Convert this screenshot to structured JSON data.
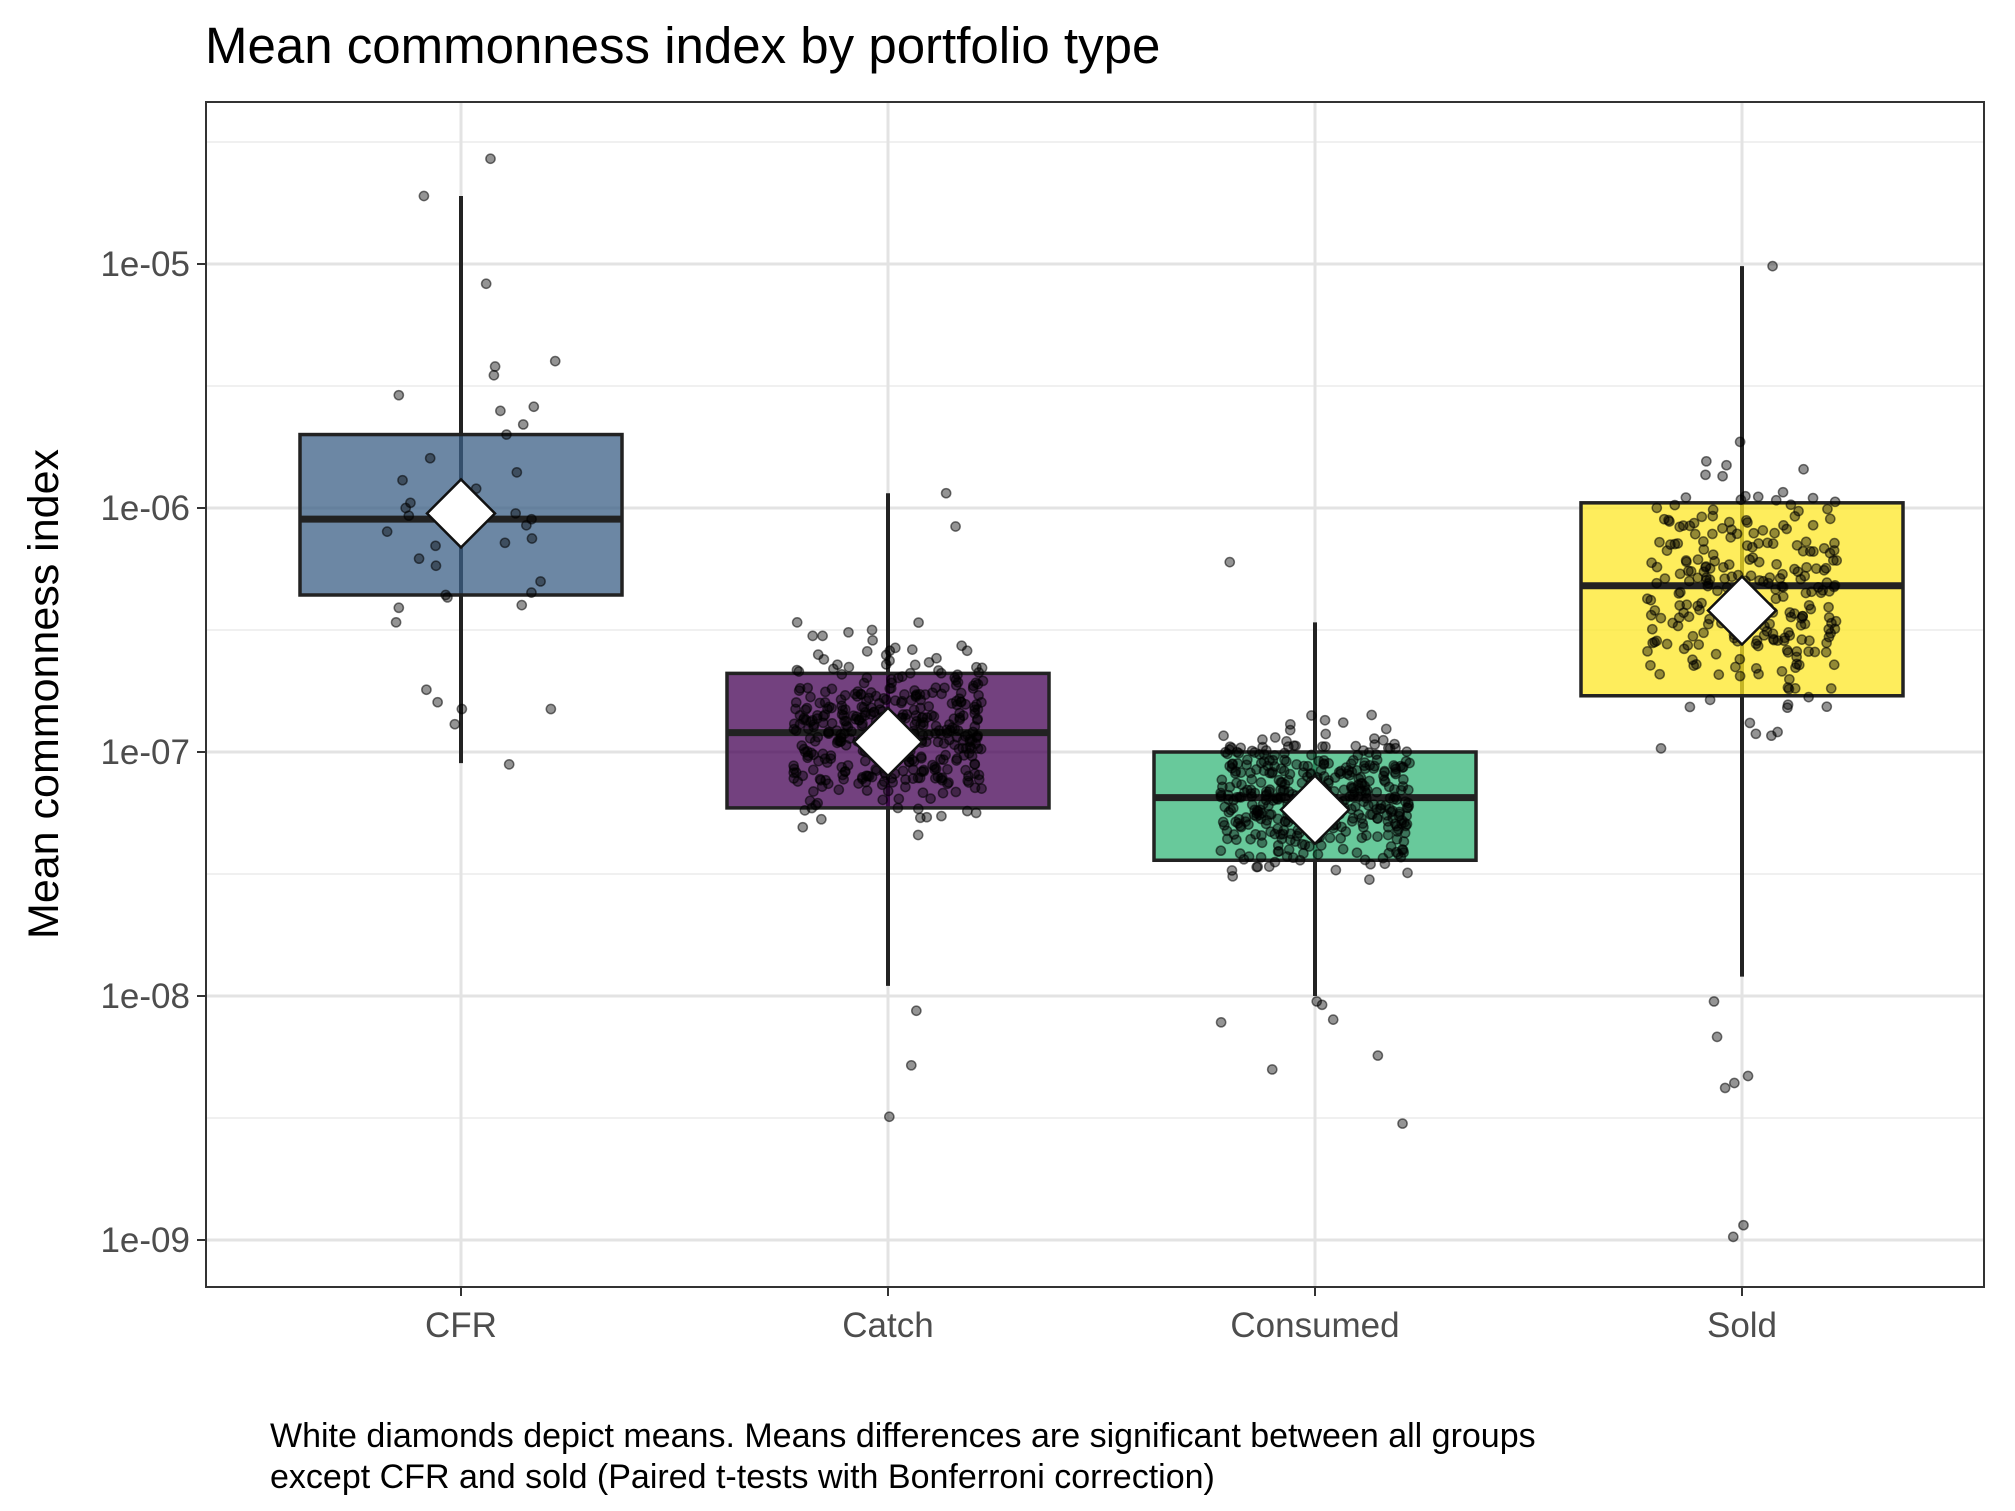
{
  "chart_data": {
    "type": "boxplot",
    "title": "Mean commonness index by portfolio type",
    "xlabel": "",
    "ylabel": "Mean commonness index",
    "y_scale": "log10",
    "ylim": [
      6e-10,
      4.2e-05
    ],
    "y_ticks": [
      1e-09,
      1e-08,
      1e-07,
      1e-06,
      1e-05
    ],
    "y_tick_labels": [
      "1e-09",
      "1e-08",
      "1e-07",
      "1e-06",
      "1e-05"
    ],
    "grid": true,
    "categories": [
      "CFR",
      "Catch",
      "Consumed",
      "Sold"
    ],
    "boxes": [
      {
        "category": "CFR",
        "color": "#3B5F86",
        "whisker_low": 9e-08,
        "q1": 4.4e-07,
        "median": 9e-07,
        "q3": 2e-06,
        "whisker_high": 1.9e-05,
        "mean": 9.5e-07,
        "n_points": 42,
        "points": [
          2.7e-05,
          1.9e-05,
          8.3e-06,
          4e-06,
          3.8e-06,
          3.5e-06,
          2.9e-06,
          2.6e-06,
          2.5e-06,
          2.2e-06,
          2e-06,
          1.6e-06,
          1.4e-06,
          1.3e-06,
          1.2e-06,
          1.05e-06,
          1e-06,
          9.5e-07,
          9e-07,
          8.5e-07,
          8e-07,
          7.8e-07,
          7.2e-07,
          7e-07,
          6.2e-07,
          5.8e-07,
          5e-07,
          4.5e-07,
          4.4e-07,
          4.3e-07,
          4e-07,
          3.9e-07,
          3.4e-07,
          1.8e-07,
          1.6e-07,
          1.5e-07,
          1.5e-07,
          1.3e-07,
          8.9e-08,
          9.3e-07,
          1.1e-06,
          7.5e-07
        ]
      },
      {
        "category": "Catch",
        "color": "#440154",
        "whisker_low": 1.1e-08,
        "q1": 5.9e-08,
        "median": 1.2e-07,
        "q3": 2.1e-07,
        "whisker_high": 1.15e-06,
        "mean": 1.1e-07,
        "n_points": 420,
        "outliers": [
          1.15e-06,
          8.4e-07,
          8.7e-09,
          5.2e-09,
          3.2e-09
        ]
      },
      {
        "category": "Consumed",
        "color": "#35B779",
        "whisker_low": 1e-08,
        "q1": 3.6e-08,
        "median": 6.5e-08,
        "q3": 1e-07,
        "whisker_high": 3.4e-07,
        "mean": 5.8e-08,
        "n_points": 430,
        "outliers": [
          6e-07,
          9.5e-09,
          9.2e-09,
          8e-09,
          7.8e-09,
          5.7e-09,
          5e-09,
          3e-09
        ]
      },
      {
        "category": "Sold",
        "color": "#FDE725",
        "whisker_low": 1.2e-08,
        "q1": 1.7e-07,
        "median": 4.8e-07,
        "q3": 1.05e-06,
        "whisker_high": 9.8e-06,
        "mean": 3.8e-07,
        "n_points": 260,
        "outliers": [
          9.8e-06,
          9.5e-09,
          6.8e-09,
          4.7e-09,
          4.4e-09,
          4.2e-09,
          1.15e-09,
          1.03e-09
        ]
      }
    ],
    "mean_marker": "white diamond",
    "caption": [
      "White diamonds depict means. Means differences are significant between all groups",
      "except CFR and sold (Paired t-tests with Bonferroni correction)"
    ]
  }
}
